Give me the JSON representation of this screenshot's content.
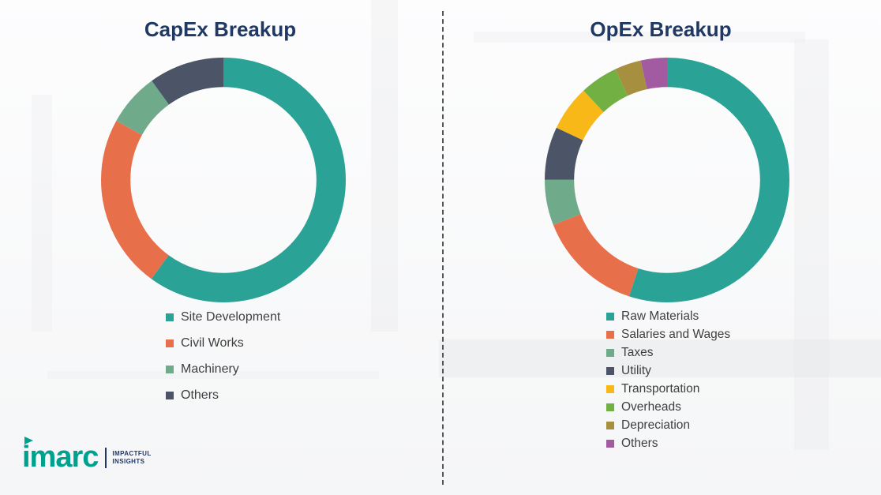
{
  "brand": {
    "logo_text": "imarc",
    "tagline_line1": "IMPACTFUL",
    "tagline_line2": "INSIGHTS",
    "logo_color": "#00A08F",
    "tagline_color": "#1F3864"
  },
  "style": {
    "title_color": "#1F3864",
    "legend_text_color": "#3F3F3F",
    "divider_color": "#555555"
  },
  "chart_data": [
    {
      "type": "pie",
      "donut": true,
      "title": "CapEx Breakup",
      "categories": [
        "Site Development",
        "Civil Works",
        "Machinery",
        "Others"
      ],
      "values": [
        60,
        23,
        7,
        10
      ],
      "colors": [
        "#2AA396",
        "#E7704B",
        "#6FAB8B",
        "#4C5567"
      ],
      "legend_position": "bottom",
      "start_angle_deg": -90,
      "direction": "clockwise"
    },
    {
      "type": "pie",
      "donut": true,
      "title": "OpEx Breakup",
      "categories": [
        "Raw Materials",
        "Salaries and Wages",
        "Taxes",
        "Utility",
        "Transportation",
        "Overheads",
        "Depreciation",
        "Others"
      ],
      "values": [
        55,
        14,
        6,
        7,
        6,
        5,
        3.5,
        3.5
      ],
      "colors": [
        "#2AA396",
        "#E7704B",
        "#6FAB8B",
        "#4C5567",
        "#F7B818",
        "#72B043",
        "#A68F3F",
        "#A25AA0"
      ],
      "legend_position": "bottom",
      "start_angle_deg": -90,
      "direction": "clockwise"
    }
  ]
}
